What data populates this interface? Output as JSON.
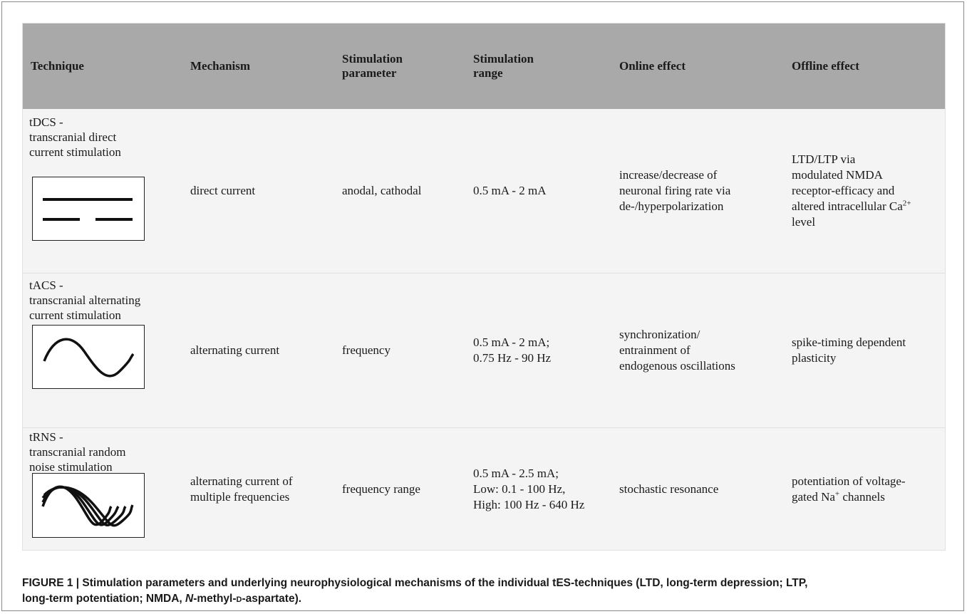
{
  "table": {
    "headers": {
      "technique": "Technique",
      "mechanism": "Mechanism",
      "parameter_line1": "Stimulation",
      "parameter_line2": "parameter",
      "range_line1": "Stimulation",
      "range_line2": "range",
      "online": "Online effect",
      "offline": "Offline effect"
    },
    "rows": [
      {
        "tech_line1": "tDCS -",
        "tech_line2": "transcranial direct",
        "tech_line3": "current stimulation",
        "waveform_icon": "direct-current-waveform",
        "mechanism": "direct current",
        "parameter": "anodal, cathodal",
        "range_line1": "0.5 mA - 2 mA",
        "online_line1": "increase/decrease of",
        "online_line2": "neuronal firing rate via",
        "online_line3": "de-/hyperpolarization",
        "offline_line1": "LTD/LTP via",
        "offline_line2": "modulated NMDA",
        "offline_line3": "receptor-efficacy and",
        "offline_line4": "altered intracellular Ca",
        "offline_sup": "2+",
        "offline_line5": "level"
      },
      {
        "tech_line1": "tACS -",
        "tech_line2": "transcranial alternating",
        "tech_line3": "current stimulation",
        "waveform_icon": "sine-waveform",
        "mechanism": "alternating current",
        "parameter": "frequency",
        "range_line1": "0.5 mA - 2 mA;",
        "range_line2": "0.75 Hz - 90 Hz",
        "online_line1": "synchronization/",
        "online_line2": "entrainment of",
        "online_line3": "endogenous oscillations",
        "offline_line1": "spike-timing dependent",
        "offline_line2": "plasticity"
      },
      {
        "tech_line1": "tRNS -",
        "tech_line2": "transcranial random",
        "tech_line3": "noise stimulation",
        "waveform_icon": "multi-frequency-waveform",
        "mechanism_line1": "alternating current of",
        "mechanism_line2": "multiple frequencies",
        "parameter": "frequency range",
        "range_line1": "0.5 mA - 2.5 mA;",
        "range_line2": "Low: 0.1 - 100 Hz,",
        "range_line3": "High: 100 Hz - 640 Hz",
        "online_line1": "stochastic resonance",
        "offline_line1": "potentiation of voltage-",
        "offline_line2a": "gated Na",
        "offline_sup": "+",
        "offline_line2b": " channels"
      }
    ]
  },
  "caption": {
    "label": "FIGURE 1 | Stimulation parameters and underlying neurophysiological mechanisms of the individual tES-techniques (LTD, long-term depression; LTP,",
    "line2_a": "long-term potentiation; NMDA, ",
    "line2_italic": "N",
    "line2_b": "-methyl-",
    "line2_sc": "d",
    "line2_c": "-aspartate)."
  }
}
